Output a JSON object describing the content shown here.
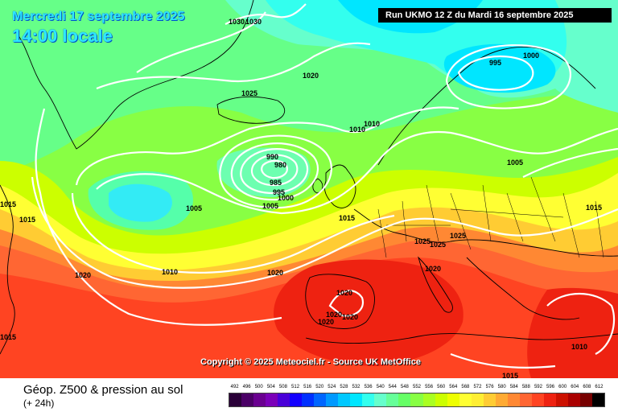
{
  "header": {
    "date": "Mercredi 17 septembre 2025",
    "time": "14:00 locale",
    "run": "Run UKMO 12 Z du Mardi 16 septembre 2025"
  },
  "map": {
    "copyright": "Copyright © 2025 Meteociel.fr - Source UK MetOffice",
    "isobar_labels": [
      {
        "id": "lbl-1030-a",
        "text": "1030"
      },
      {
        "id": "lbl-1030-b",
        "text": "1030"
      },
      {
        "id": "lbl-1020-n",
        "text": "1020"
      },
      {
        "id": "lbl-1025-n",
        "text": "1025"
      },
      {
        "id": "lbl-1010-a",
        "text": "1010"
      },
      {
        "id": "lbl-1010-b",
        "text": "1010"
      },
      {
        "id": "lbl-995-ne",
        "text": "995"
      },
      {
        "id": "lbl-1000-ne",
        "text": "1000"
      },
      {
        "id": "lbl-990",
        "text": "990"
      },
      {
        "id": "lbl-980",
        "text": "980"
      },
      {
        "id": "lbl-985",
        "text": "985"
      },
      {
        "id": "lbl-995-l",
        "text": "995"
      },
      {
        "id": "lbl-1000-l",
        "text": "1000"
      },
      {
        "id": "lbl-1005-a",
        "text": "1005"
      },
      {
        "id": "lbl-1005-b",
        "text": "1005"
      },
      {
        "id": "lbl-1005-c",
        "text": "1005"
      },
      {
        "id": "lbl-1015-w1",
        "text": "1015"
      },
      {
        "id": "lbl-1015-w2",
        "text": "1015"
      },
      {
        "id": "lbl-1015-c",
        "text": "1015"
      },
      {
        "id": "lbl-1015-e",
        "text": "1015"
      },
      {
        "id": "lbl-1020-w",
        "text": "1020"
      },
      {
        "id": "lbl-1010-w",
        "text": "1010"
      },
      {
        "id": "lbl-1020-c",
        "text": "1020"
      },
      {
        "id": "lbl-1025-a",
        "text": "1025"
      },
      {
        "id": "lbl-1025-b",
        "text": "1025"
      },
      {
        "id": "lbl-1025-c",
        "text": "1025"
      },
      {
        "id": "lbl-1020-it",
        "text": "1020"
      },
      {
        "id": "lbl-1020-sp1",
        "text": "1020"
      },
      {
        "id": "lbl-1020-sp2",
        "text": "1020"
      },
      {
        "id": "lbl-1020-sp3",
        "text": "1020"
      },
      {
        "id": "lbl-1020-sp4",
        "text": "1020"
      },
      {
        "id": "lbl-1015-sw",
        "text": "1015"
      },
      {
        "id": "lbl-1010-se",
        "text": "1010"
      },
      {
        "id": "lbl-1015-s",
        "text": "1015"
      }
    ]
  },
  "legend": {
    "title": "Géop. Z500 & pression au sol",
    "subtitle": "(+ 24h)",
    "scale_values": [
      "492",
      "496",
      "500",
      "504",
      "508",
      "512",
      "516",
      "520",
      "524",
      "528",
      "532",
      "536",
      "540",
      "544",
      "548",
      "552",
      "556",
      "560",
      "564",
      "568",
      "572",
      "576",
      "580",
      "584",
      "588",
      "592",
      "596",
      "600",
      "604",
      "608",
      "612"
    ],
    "scale_colors": [
      "#2a0038",
      "#4b0066",
      "#6a0090",
      "#7b00b8",
      "#4a00d8",
      "#1400ff",
      "#0030ff",
      "#0066ff",
      "#0099ff",
      "#00c8ff",
      "#00e6ff",
      "#33ffee",
      "#66ffcc",
      "#66ff99",
      "#66ff66",
      "#88ff44",
      "#aaff22",
      "#ccff00",
      "#eeff00",
      "#ffff33",
      "#ffee33",
      "#ffcc33",
      "#ffaa33",
      "#ff8833",
      "#ff6633",
      "#ff4422",
      "#ee2211",
      "#cc1100",
      "#aa0000",
      "#770000",
      "#000000"
    ]
  }
}
